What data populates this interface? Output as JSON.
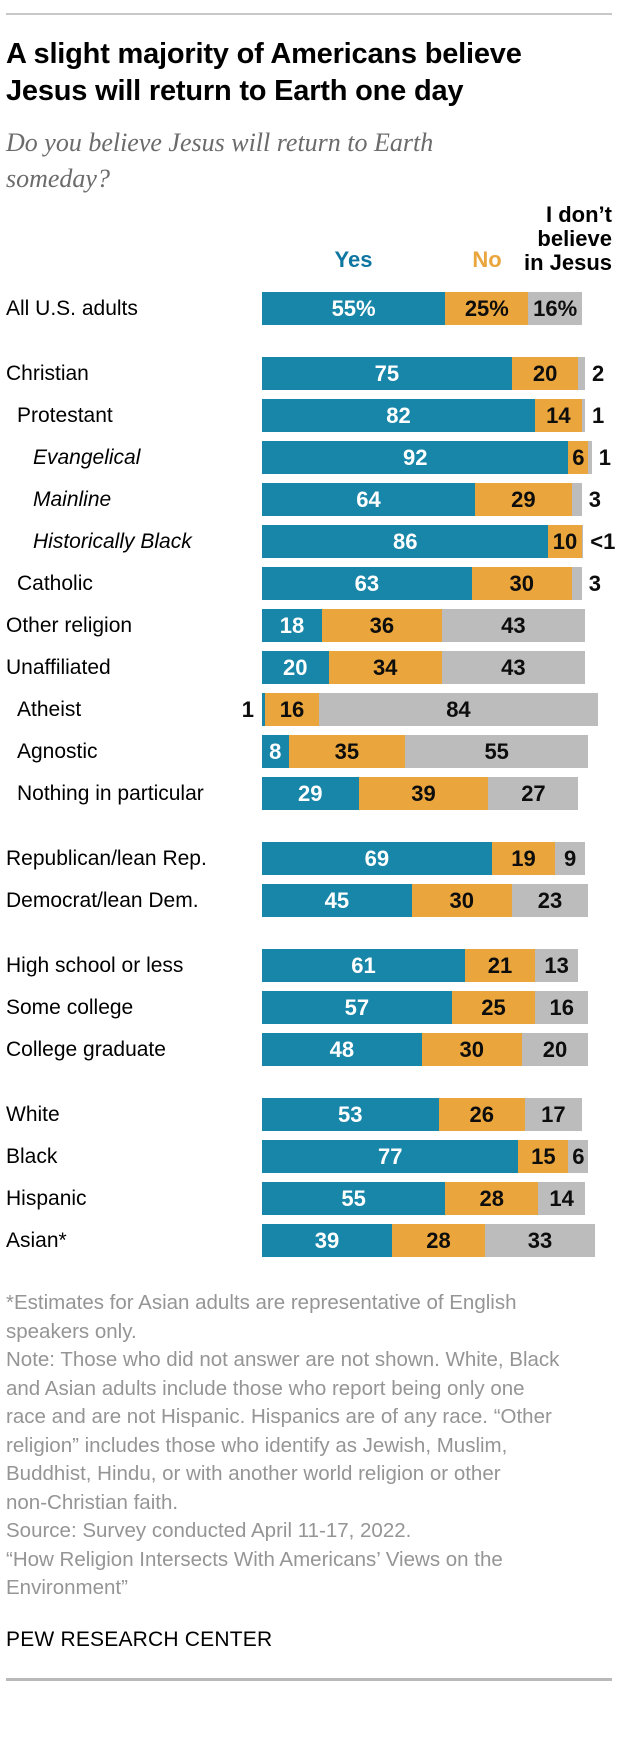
{
  "header": {
    "title": "A slight majority of Americans believe\nJesus will return to Earth one day",
    "subtitle": "Do you believe Jesus will return to Earth\nsomeday?"
  },
  "chart_data": {
    "type": "bar",
    "stacked": true,
    "orientation": "horizontal",
    "unit": "%",
    "xlim": [
      0,
      100
    ],
    "series": [
      "Yes",
      "No",
      "I don’t believe in Jesus"
    ],
    "legend": {
      "yes": {
        "label": "Yes",
        "color": "#0f76a2"
      },
      "no": {
        "label": "No",
        "color": "#eaa53c"
      },
      "dk": {
        "label": "I don’t believe in Jesus",
        "lines": "I don’t\nbelieve\nin Jesus",
        "color": "#000000"
      }
    },
    "colors": {
      "yes": "#1886a8",
      "no": "#eaa63c",
      "dk": "#bcbcbc"
    },
    "groups": [
      {
        "rows": [
          {
            "label": "All U.S. adults",
            "indent": 0,
            "italic": false,
            "yes": {
              "v": 55,
              "t": "55%"
            },
            "no": {
              "v": 25,
              "t": "25%"
            },
            "dk": {
              "v": 16,
              "t": "16%"
            }
          }
        ]
      },
      {
        "rows": [
          {
            "label": "Christian",
            "indent": 0,
            "italic": false,
            "yes": {
              "v": 75,
              "t": "75"
            },
            "no": {
              "v": 20,
              "t": "20"
            },
            "dk": {
              "v": 2,
              "t": "2"
            }
          },
          {
            "label": "Protestant",
            "indent": 1,
            "italic": false,
            "yes": {
              "v": 82,
              "t": "82"
            },
            "no": {
              "v": 14,
              "t": "14"
            },
            "dk": {
              "v": 1,
              "t": "1"
            }
          },
          {
            "label": "Evangelical",
            "indent": 2,
            "italic": true,
            "yes": {
              "v": 92,
              "t": "92"
            },
            "no": {
              "v": 6,
              "t": "6"
            },
            "dk": {
              "v": 1,
              "t": "1"
            }
          },
          {
            "label": "Mainline",
            "indent": 2,
            "italic": true,
            "yes": {
              "v": 64,
              "t": "64"
            },
            "no": {
              "v": 29,
              "t": "29"
            },
            "dk": {
              "v": 3,
              "t": "3"
            }
          },
          {
            "label": "Historically Black",
            "indent": 2,
            "italic": true,
            "yes": {
              "v": 86,
              "t": "86"
            },
            "no": {
              "v": 10,
              "t": "10"
            },
            "dk": {
              "v": 0.5,
              "t": "<1"
            }
          },
          {
            "label": "Catholic",
            "indent": 1,
            "italic": false,
            "yes": {
              "v": 63,
              "t": "63"
            },
            "no": {
              "v": 30,
              "t": "30"
            },
            "dk": {
              "v": 3,
              "t": "3"
            }
          },
          {
            "label": "Other religion",
            "indent": 0,
            "italic": false,
            "yes": {
              "v": 18,
              "t": "18"
            },
            "no": {
              "v": 36,
              "t": "36"
            },
            "dk": {
              "v": 43,
              "t": "43"
            }
          },
          {
            "label": "Unaffiliated",
            "indent": 0,
            "italic": false,
            "yes": {
              "v": 20,
              "t": "20"
            },
            "no": {
              "v": 34,
              "t": "34"
            },
            "dk": {
              "v": 43,
              "t": "43"
            }
          },
          {
            "label": "Atheist",
            "indent": 1,
            "italic": false,
            "yes": {
              "v": 1,
              "t": "1"
            },
            "no": {
              "v": 16,
              "t": "16"
            },
            "dk": {
              "v": 84,
              "t": "84"
            }
          },
          {
            "label": "Agnostic",
            "indent": 1,
            "italic": false,
            "yes": {
              "v": 8,
              "t": "8"
            },
            "no": {
              "v": 35,
              "t": "35"
            },
            "dk": {
              "v": 55,
              "t": "55"
            }
          },
          {
            "label": "Nothing in particular",
            "indent": 1,
            "italic": false,
            "yes": {
              "v": 29,
              "t": "29"
            },
            "no": {
              "v": 39,
              "t": "39"
            },
            "dk": {
              "v": 27,
              "t": "27"
            }
          }
        ]
      },
      {
        "rows": [
          {
            "label": "Republican/lean Rep.",
            "indent": 0,
            "italic": false,
            "yes": {
              "v": 69,
              "t": "69"
            },
            "no": {
              "v": 19,
              "t": "19"
            },
            "dk": {
              "v": 9,
              "t": "9"
            }
          },
          {
            "label": "Democrat/lean Dem.",
            "indent": 0,
            "italic": false,
            "yes": {
              "v": 45,
              "t": "45"
            },
            "no": {
              "v": 30,
              "t": "30"
            },
            "dk": {
              "v": 23,
              "t": "23"
            }
          }
        ]
      },
      {
        "rows": [
          {
            "label": "High school or less",
            "indent": 0,
            "italic": false,
            "yes": {
              "v": 61,
              "t": "61"
            },
            "no": {
              "v": 21,
              "t": "21"
            },
            "dk": {
              "v": 13,
              "t": "13"
            }
          },
          {
            "label": "Some college",
            "indent": 0,
            "italic": false,
            "yes": {
              "v": 57,
              "t": "57"
            },
            "no": {
              "v": 25,
              "t": "25"
            },
            "dk": {
              "v": 16,
              "t": "16"
            }
          },
          {
            "label": "College graduate",
            "indent": 0,
            "italic": false,
            "yes": {
              "v": 48,
              "t": "48"
            },
            "no": {
              "v": 30,
              "t": "30"
            },
            "dk": {
              "v": 20,
              "t": "20"
            }
          }
        ]
      },
      {
        "rows": [
          {
            "label": "White",
            "indent": 0,
            "italic": false,
            "yes": {
              "v": 53,
              "t": "53"
            },
            "no": {
              "v": 26,
              "t": "26"
            },
            "dk": {
              "v": 17,
              "t": "17"
            }
          },
          {
            "label": "Black",
            "indent": 0,
            "italic": false,
            "yes": {
              "v": 77,
              "t": "77"
            },
            "no": {
              "v": 15,
              "t": "15"
            },
            "dk": {
              "v": 6,
              "t": "6"
            }
          },
          {
            "label": "Hispanic",
            "indent": 0,
            "italic": false,
            "yes": {
              "v": 55,
              "t": "55"
            },
            "no": {
              "v": 28,
              "t": "28"
            },
            "dk": {
              "v": 14,
              "t": "14"
            }
          },
          {
            "label": "Asian*",
            "indent": 0,
            "italic": false,
            "yes": {
              "v": 39,
              "t": "39"
            },
            "no": {
              "v": 28,
              "t": "28"
            },
            "dk": {
              "v": 33,
              "t": "33"
            }
          }
        ]
      }
    ]
  },
  "footer": {
    "asterisk_note": "*Estimates for Asian adults are representative of English\nspeakers only.",
    "note": "Note: Those who did not answer are not shown. White, Black\nand Asian adults include those who report being only one\nrace and are not Hispanic. Hispanics are of any race. “Other\nreligion” includes those who identify as Jewish, Muslim,\nBuddhist, Hindu, or with another world religion or other\nnon-Christian faith.",
    "source": "Source: Survey conducted April 11-17, 2022.",
    "report": "“How Religion Intersects With Americans’ Views on the\nEnvironment”",
    "brand": "PEW RESEARCH CENTER"
  }
}
